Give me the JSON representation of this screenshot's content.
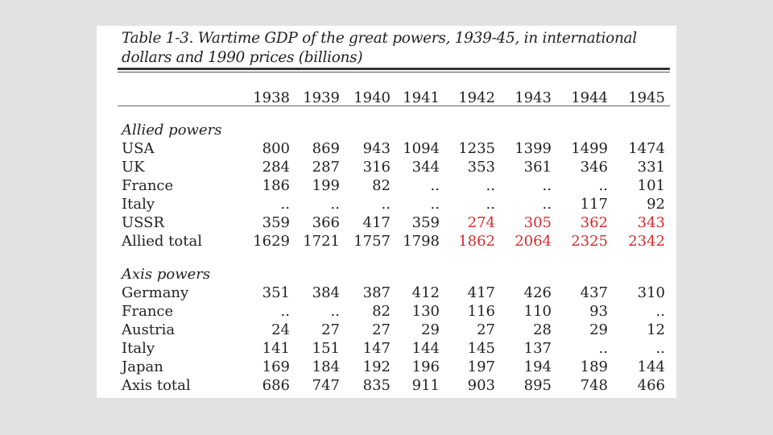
{
  "table": {
    "title": "Table 1-3. Wartime GDP of the great powers, 1939-45, in international dollars and 1990 prices (billions)",
    "columns": [
      "1938",
      "1939",
      "1940",
      "1941",
      "1942",
      "1943",
      "1944",
      "1945"
    ],
    "sections": [
      {
        "heading": "Allied powers",
        "rows": [
          {
            "label": "USA",
            "values": [
              "800",
              "869",
              "943",
              "1094",
              "1235",
              "1399",
              "1499",
              "1474"
            ]
          },
          {
            "label": "UK",
            "values": [
              "284",
              "287",
              "316",
              "344",
              "353",
              "361",
              "346",
              "331"
            ]
          },
          {
            "label": "France",
            "values": [
              "186",
              "199",
              "82",
              "..",
              "..",
              "..",
              "..",
              "101"
            ]
          },
          {
            "label": "Italy",
            "values": [
              "..",
              "..",
              "..",
              "..",
              "..",
              "..",
              "117",
              "92"
            ]
          },
          {
            "label": "USSR",
            "values": [
              "359",
              "366",
              "417",
              "359",
              "274",
              "305",
              "362",
              "343"
            ]
          },
          {
            "label": "Allied total",
            "values": [
              "1629",
              "1721",
              "1757",
              "1798",
              "1862",
              "2064",
              "2325",
              "2342"
            ]
          }
        ]
      },
      {
        "heading": "Axis powers",
        "rows": [
          {
            "label": "Germany",
            "values": [
              "351",
              "384",
              "387",
              "412",
              "417",
              "426",
              "437",
              "310"
            ]
          },
          {
            "label": "France",
            "values": [
              "..",
              "..",
              "82",
              "130",
              "116",
              "110",
              "93",
              ".."
            ]
          },
          {
            "label": "Austria",
            "values": [
              "24",
              "27",
              "27",
              "29",
              "27",
              "28",
              "29",
              "12"
            ]
          },
          {
            "label": "Italy",
            "values": [
              "141",
              "151",
              "147",
              "144",
              "145",
              "137",
              "..",
              ".."
            ]
          },
          {
            "label": "Japan",
            "values": [
              "169",
              "184",
              "192",
              "196",
              "197",
              "194",
              "189",
              "144"
            ]
          },
          {
            "label": "Axis total",
            "values": [
              "686",
              "747",
              "835",
              "911",
              "903",
              "895",
              "748",
              "466"
            ]
          }
        ]
      }
    ],
    "highlight_color": "#d42b2b"
  }
}
